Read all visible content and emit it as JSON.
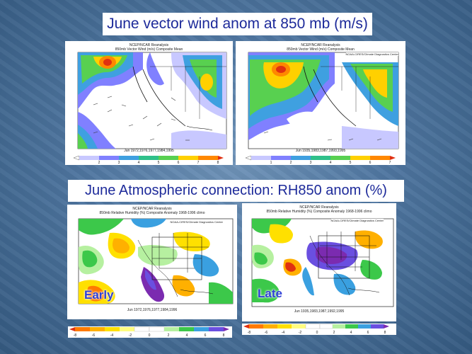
{
  "titles": {
    "wind": "June vector wind anom at 850 mb (m/s)",
    "rh": "June Atmospheric connection: RH850 anom (%)"
  },
  "panels": {
    "wind_early": {
      "source": "NCEP/NCAR Reanalysis",
      "title": "850mb Vector Wind (m/s) Composite Mean",
      "years": "Jun 1972,1976,1977,1984,1995",
      "colorbar": [
        "2",
        "3",
        "4",
        "5",
        "6",
        "7",
        "8"
      ]
    },
    "wind_late": {
      "source": "NCEP/NCAR Reanalysis",
      "title": "850mb Vector Wind (m/s) Composite Mean",
      "credit": "NOAA-CIRES/Climate Diagnostics Center",
      "years": "Jun 1935,1983,1987,1993,1995",
      "colorbar": [
        "1",
        "2",
        "3",
        "4",
        "5",
        "6",
        "7"
      ]
    },
    "rh_early": {
      "source": "NCEP/NCAR Reanalysis",
      "title": "850mb Relative Humidity (%) Composite Anomaly 1968-1996 climo",
      "credit": "NOAA-CIRES/Climate Diagnostics Center",
      "years": "Jun 1972,1976,1977,1984,1996",
      "label": "Early",
      "colorbar": [
        "-8",
        "-6",
        "-4",
        "-2",
        "0",
        "2",
        "4",
        "6",
        "8"
      ]
    },
    "rh_late": {
      "source": "NCEP/NCAR Reanalysis",
      "title": "850mb Relative Humidity (%) Composite Anomaly 1968-1996 climo",
      "credit": "NOAA-CIRES/Climate Diagnostics Center",
      "years": "Jun 1935,1983,1987,1992,1995",
      "label": "Late",
      "colorbar": [
        "-8",
        "-6",
        "-4",
        "-2",
        "0",
        "2",
        "4",
        "6",
        "8"
      ]
    }
  },
  "colors": {
    "title_text": "#1d2a9a",
    "label_text": "#2e3fd6",
    "wind_scale": [
      "#ffffff",
      "#c8c8ff",
      "#8080ff",
      "#3fa0e0",
      "#2fc08a",
      "#58d050",
      "#ffd000",
      "#ff8800",
      "#e03010"
    ],
    "rh_scale": [
      "#e03010",
      "#ff7a00",
      "#ffb000",
      "#ffe000",
      "#fffd80",
      "#ffffff",
      "#b6f0a0",
      "#3cc84a",
      "#2a9a40",
      "#3aa0e0",
      "#6a4fe0",
      "#7b2bb0"
    ]
  }
}
